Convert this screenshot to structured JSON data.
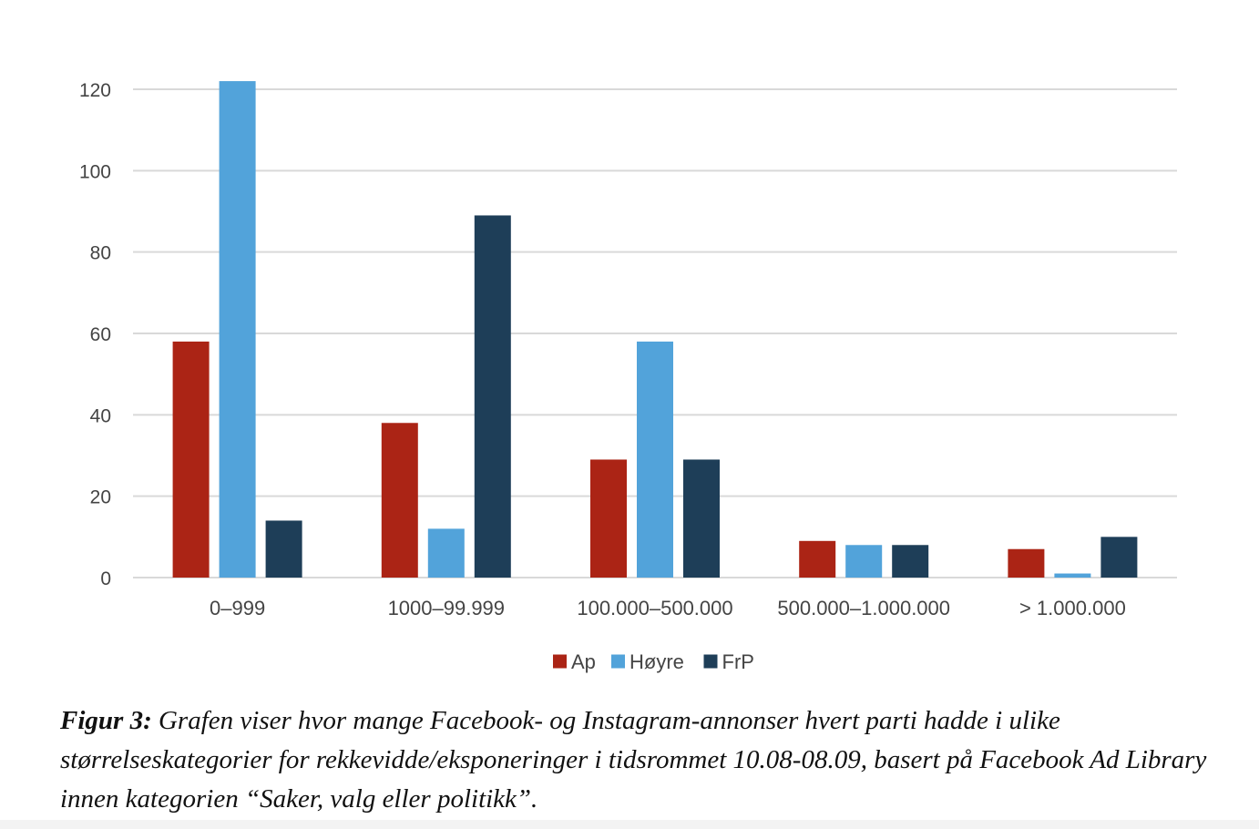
{
  "chart_data": {
    "type": "bar",
    "categories": [
      "0–999",
      "1000–99.999",
      "100.000–500.000",
      "500.000–1.000.000",
      "> 1.000.000"
    ],
    "series": [
      {
        "name": "Ap",
        "color": "#ab2415",
        "values": [
          58,
          38,
          29,
          9,
          7
        ]
      },
      {
        "name": "Høyre",
        "color": "#52a3da",
        "values": [
          122,
          12,
          58,
          8,
          1
        ]
      },
      {
        "name": "FrP",
        "color": "#1e3e58",
        "values": [
          14,
          89,
          29,
          8,
          10
        ]
      }
    ],
    "yticks": [
      0,
      20,
      40,
      60,
      80,
      100,
      120
    ],
    "ylim": [
      0,
      120
    ],
    "grid": true,
    "legend_position": "bottom-center",
    "gridline_color": "#d9d9d9"
  },
  "caption": {
    "label": "Figur 3:",
    "text": "Grafen viser hvor mange Facebook- og Instagram-annonser hvert parti hadde i ulike størrelseskategorier for rekkevidde/eksponeringer i tidsrommet 10.08-08.09, basert på Facebook Ad Library innen kategorien “Saker, valg eller politikk”."
  }
}
